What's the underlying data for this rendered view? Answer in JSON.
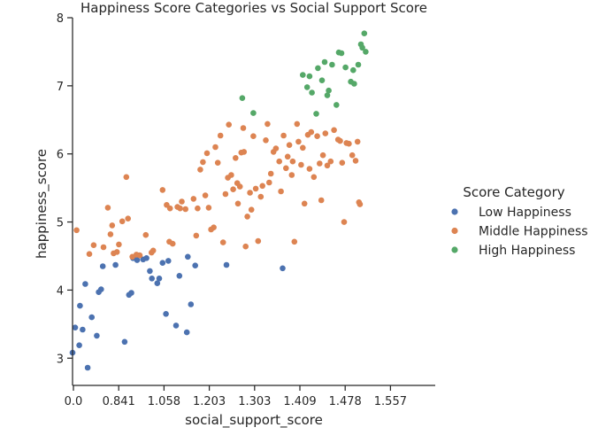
{
  "chart_data": {
    "type": "scatter",
    "title": "Happiness Score Categories vs Social Support Score",
    "xlabel": "social_support_score",
    "ylabel": "happiness_score",
    "x_tick_labels": [
      "0.0",
      "0.841",
      "1.058",
      "1.203",
      "1.303",
      "1.409",
      "1.478",
      "1.557"
    ],
    "y_ticks": [
      3,
      4,
      5,
      6,
      7,
      8
    ],
    "ylim": [
      2.6,
      8.0
    ],
    "grid": false,
    "x_scale_note": "x axis is a quantile-ranked scale; points given by rank position 0-1",
    "legend": {
      "title": "Score Category",
      "placement": "right"
    },
    "colors": {
      "Low Happiness": "#4c72b0",
      "Middle Happiness": "#dd8452",
      "High Happiness": "#55a868",
      "axis": "#262626"
    },
    "series": [
      {
        "name": "Low Happiness",
        "points": [
          [
            0.0,
            3.08
          ],
          [
            0.008,
            3.45
          ],
          [
            0.02,
            3.19
          ],
          [
            0.022,
            3.77
          ],
          [
            0.03,
            3.42
          ],
          [
            0.038,
            4.09
          ],
          [
            0.045,
            2.86
          ],
          [
            0.057,
            3.6
          ],
          [
            0.072,
            3.33
          ],
          [
            0.078,
            3.97
          ],
          [
            0.085,
            4.01
          ],
          [
            0.09,
            4.35
          ],
          [
            0.128,
            4.37
          ],
          [
            0.155,
            3.24
          ],
          [
            0.168,
            3.93
          ],
          [
            0.175,
            3.96
          ],
          [
            0.18,
            4.47
          ],
          [
            0.192,
            4.44
          ],
          [
            0.198,
            4.51
          ],
          [
            0.21,
            4.45
          ],
          [
            0.22,
            4.47
          ],
          [
            0.23,
            4.28
          ],
          [
            0.236,
            4.17
          ],
          [
            0.252,
            4.1
          ],
          [
            0.258,
            4.17
          ],
          [
            0.268,
            4.4
          ],
          [
            0.285,
            4.43
          ],
          [
            0.278,
            3.65
          ],
          [
            0.308,
            3.48
          ],
          [
            0.318,
            4.21
          ],
          [
            0.34,
            3.38
          ],
          [
            0.343,
            4.49
          ],
          [
            0.352,
            3.79
          ],
          [
            0.365,
            4.36
          ],
          [
            0.458,
            4.37
          ],
          [
            0.625,
            4.32
          ]
        ]
      },
      {
        "name": "Middle Happiness",
        "points": [
          [
            0.012,
            4.88
          ],
          [
            0.05,
            4.53
          ],
          [
            0.063,
            4.66
          ],
          [
            0.092,
            4.63
          ],
          [
            0.105,
            5.21
          ],
          [
            0.113,
            4.82
          ],
          [
            0.118,
            4.95
          ],
          [
            0.122,
            4.54
          ],
          [
            0.132,
            4.56
          ],
          [
            0.138,
            4.67
          ],
          [
            0.148,
            5.01
          ],
          [
            0.16,
            5.66
          ],
          [
            0.165,
            5.05
          ],
          [
            0.178,
            4.49
          ],
          [
            0.19,
            4.52
          ],
          [
            0.2,
            4.51
          ],
          [
            0.218,
            4.81
          ],
          [
            0.235,
            4.55
          ],
          [
            0.24,
            4.58
          ],
          [
            0.268,
            5.47
          ],
          [
            0.28,
            5.25
          ],
          [
            0.288,
            4.71
          ],
          [
            0.298,
            4.68
          ],
          [
            0.29,
            5.2
          ],
          [
            0.312,
            5.22
          ],
          [
            0.32,
            5.2
          ],
          [
            0.325,
            5.3
          ],
          [
            0.336,
            5.19
          ],
          [
            0.36,
            5.34
          ],
          [
            0.368,
            4.8
          ],
          [
            0.372,
            5.2
          ],
          [
            0.38,
            5.77
          ],
          [
            0.388,
            5.88
          ],
          [
            0.395,
            5.39
          ],
          [
            0.4,
            6.01
          ],
          [
            0.405,
            5.21
          ],
          [
            0.412,
            4.89
          ],
          [
            0.42,
            4.92
          ],
          [
            0.425,
            6.1
          ],
          [
            0.432,
            5.87
          ],
          [
            0.44,
            6.27
          ],
          [
            0.448,
            4.7
          ],
          [
            0.455,
            5.41
          ],
          [
            0.462,
            5.65
          ],
          [
            0.465,
            6.43
          ],
          [
            0.472,
            5.69
          ],
          [
            0.478,
            5.48
          ],
          [
            0.485,
            5.94
          ],
          [
            0.49,
            5.57
          ],
          [
            0.492,
            5.27
          ],
          [
            0.498,
            5.52
          ],
          [
            0.502,
            6.02
          ],
          [
            0.508,
            6.38
          ],
          [
            0.51,
            6.03
          ],
          [
            0.515,
            4.64
          ],
          [
            0.52,
            5.08
          ],
          [
            0.528,
            5.43
          ],
          [
            0.532,
            5.18
          ],
          [
            0.538,
            6.26
          ],
          [
            0.545,
            5.49
          ],
          [
            0.552,
            4.72
          ],
          [
            0.56,
            5.37
          ],
          [
            0.565,
            5.53
          ],
          [
            0.575,
            6.2
          ],
          [
            0.58,
            6.44
          ],
          [
            0.585,
            5.58
          ],
          [
            0.59,
            5.71
          ],
          [
            0.598,
            6.03
          ],
          [
            0.605,
            6.08
          ],
          [
            0.615,
            5.89
          ],
          [
            0.62,
            5.45
          ],
          [
            0.628,
            6.27
          ],
          [
            0.635,
            5.79
          ],
          [
            0.64,
            5.96
          ],
          [
            0.645,
            6.13
          ],
          [
            0.652,
            5.69
          ],
          [
            0.655,
            5.89
          ],
          [
            0.66,
            4.71
          ],
          [
            0.668,
            6.44
          ],
          [
            0.672,
            6.18
          ],
          [
            0.68,
            5.84
          ],
          [
            0.685,
            6.09
          ],
          [
            0.69,
            5.27
          ],
          [
            0.7,
            6.28
          ],
          [
            0.705,
            5.78
          ],
          [
            0.71,
            6.32
          ],
          [
            0.718,
            5.66
          ],
          [
            0.728,
            6.26
          ],
          [
            0.735,
            5.86
          ],
          [
            0.74,
            5.32
          ],
          [
            0.745,
            5.98
          ],
          [
            0.752,
            6.3
          ],
          [
            0.758,
            5.83
          ],
          [
            0.768,
            5.89
          ],
          [
            0.778,
            6.35
          ],
          [
            0.79,
            6.21
          ],
          [
            0.796,
            6.19
          ],
          [
            0.802,
            5.87
          ],
          [
            0.808,
            5.0
          ],
          [
            0.815,
            6.16
          ],
          [
            0.822,
            6.15
          ],
          [
            0.832,
            5.98
          ],
          [
            0.842,
            5.9
          ],
          [
            0.848,
            6.18
          ],
          [
            0.852,
            5.29
          ],
          [
            0.855,
            5.26
          ]
        ]
      },
      {
        "name": "High Happiness",
        "points": [
          [
            0.505,
            6.82
          ],
          [
            0.538,
            6.6
          ],
          [
            0.685,
            7.16
          ],
          [
            0.698,
            6.98
          ],
          [
            0.705,
            7.14
          ],
          [
            0.712,
            6.9
          ],
          [
            0.725,
            6.59
          ],
          [
            0.73,
            7.26
          ],
          [
            0.742,
            7.08
          ],
          [
            0.75,
            7.35
          ],
          [
            0.758,
            6.86
          ],
          [
            0.762,
            6.93
          ],
          [
            0.772,
            7.31
          ],
          [
            0.785,
            6.72
          ],
          [
            0.792,
            7.49
          ],
          [
            0.8,
            7.48
          ],
          [
            0.812,
            7.27
          ],
          [
            0.828,
            7.06
          ],
          [
            0.835,
            7.23
          ],
          [
            0.838,
            7.03
          ],
          [
            0.85,
            7.31
          ],
          [
            0.858,
            7.61
          ],
          [
            0.862,
            7.56
          ],
          [
            0.868,
            7.77
          ],
          [
            0.872,
            7.5
          ]
        ]
      }
    ]
  }
}
